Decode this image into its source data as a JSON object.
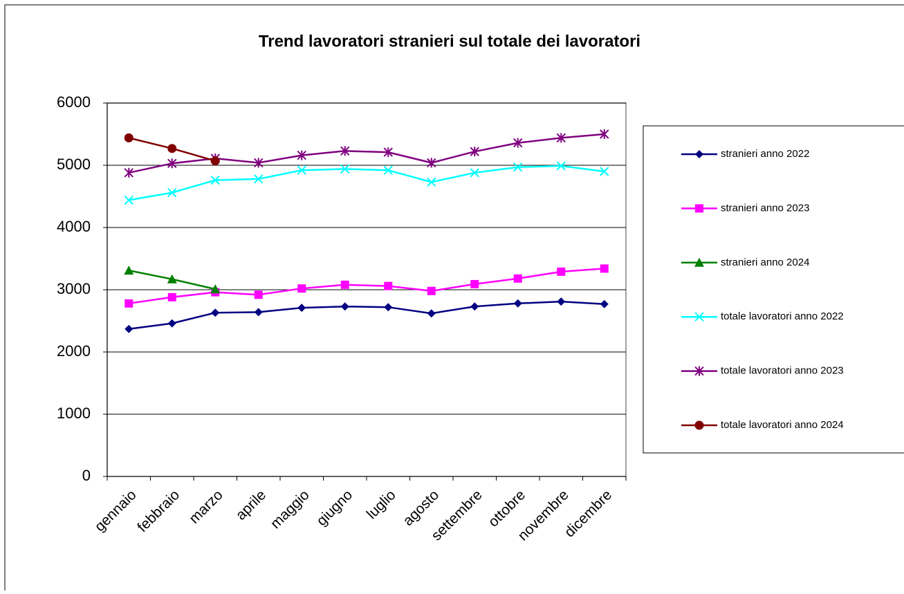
{
  "chart_data": {
    "type": "line",
    "title": "Trend lavoratori stranieri sul totale dei lavoratori",
    "categories": [
      "gennaio",
      "febbraio",
      "marzo",
      "aprile",
      "maggio",
      "giugno",
      "luglio",
      "agosto",
      "settembre",
      "ottobre",
      "novembre",
      "dicembre"
    ],
    "series": [
      {
        "name": "stranieri anno 2022",
        "color": "#000080",
        "marker": "diamond",
        "values": [
          2370,
          2460,
          2630,
          2640,
          2710,
          2730,
          2720,
          2620,
          2730,
          2780,
          2810,
          2770
        ]
      },
      {
        "name": "stranieri anno 2023",
        "color": "#ff00ff",
        "marker": "square",
        "values": [
          2780,
          2880,
          2960,
          2920,
          3020,
          3080,
          3060,
          2980,
          3090,
          3180,
          3290,
          3340
        ]
      },
      {
        "name": "stranieri anno 2024",
        "color": "#008000",
        "marker": "triangle",
        "values": [
          3310,
          3170,
          3010,
          null,
          null,
          null,
          null,
          null,
          null,
          null,
          null,
          null
        ]
      },
      {
        "name": "totale lavoratori anno 2022",
        "color": "#00ffff",
        "marker": "x",
        "values": [
          4440,
          4560,
          4760,
          4780,
          4920,
          4940,
          4920,
          4730,
          4880,
          4970,
          4990,
          4900
        ]
      },
      {
        "name": "totale lavoratori anno 2023",
        "color": "#800080",
        "marker": "star",
        "values": [
          4880,
          5030,
          5110,
          5040,
          5160,
          5230,
          5210,
          5040,
          5220,
          5360,
          5440,
          5500
        ]
      },
      {
        "name": "totale lavoratori anno 2024",
        "color": "#800000",
        "marker": "circle",
        "values": [
          5440,
          5270,
          5070,
          null,
          null,
          null,
          null,
          null,
          null,
          null,
          null,
          null
        ]
      }
    ],
    "ylim": [
      0,
      6000
    ],
    "yticks": [
      0,
      1000,
      2000,
      3000,
      4000,
      5000,
      6000
    ],
    "grid": true,
    "legend": "right"
  }
}
